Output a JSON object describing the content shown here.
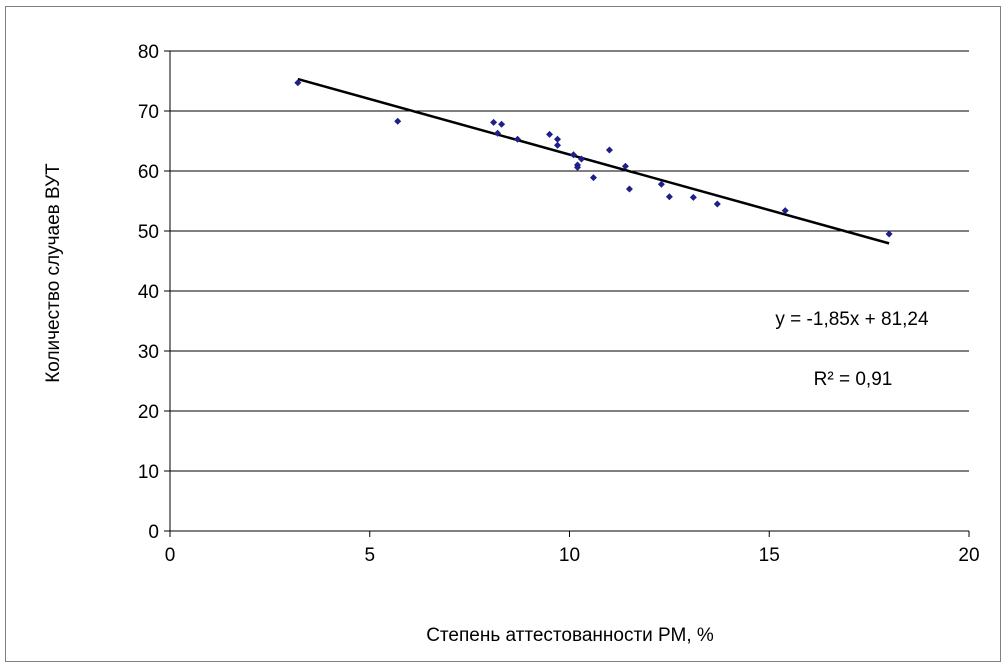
{
  "chart_data": {
    "type": "scatter",
    "title": "",
    "xlabel": "Степень аттестованности РМ, %",
    "ylabel": "Количество случаев  ВУТ",
    "xlim": [
      0,
      20
    ],
    "ylim": [
      0,
      80
    ],
    "xticks": [
      0,
      5,
      10,
      15,
      20
    ],
    "yticks": [
      0,
      10,
      20,
      30,
      40,
      50,
      60,
      70,
      80
    ],
    "grid": "horizontal",
    "point_color": "#1f1f8a",
    "line_color": "#000000",
    "points": [
      {
        "x": 3.2,
        "y": 74.7
      },
      {
        "x": 5.7,
        "y": 68.3
      },
      {
        "x": 8.1,
        "y": 68.1
      },
      {
        "x": 8.3,
        "y": 67.8
      },
      {
        "x": 8.2,
        "y": 66.3
      },
      {
        "x": 8.7,
        "y": 65.3
      },
      {
        "x": 9.5,
        "y": 66.1
      },
      {
        "x": 9.7,
        "y": 65.3
      },
      {
        "x": 9.7,
        "y": 64.3
      },
      {
        "x": 10.1,
        "y": 62.7
      },
      {
        "x": 10.3,
        "y": 62.0
      },
      {
        "x": 10.2,
        "y": 61.0
      },
      {
        "x": 10.2,
        "y": 60.6
      },
      {
        "x": 11.0,
        "y": 63.5
      },
      {
        "x": 11.4,
        "y": 60.8
      },
      {
        "x": 10.6,
        "y": 58.9
      },
      {
        "x": 11.5,
        "y": 57.0
      },
      {
        "x": 12.3,
        "y": 57.8
      },
      {
        "x": 12.5,
        "y": 55.7
      },
      {
        "x": 13.1,
        "y": 55.6
      },
      {
        "x": 13.7,
        "y": 54.5
      },
      {
        "x": 15.4,
        "y": 53.4
      },
      {
        "x": 18.0,
        "y": 49.5
      }
    ],
    "trendline": {
      "slope": -1.85,
      "intercept": 81.24,
      "x_range": [
        3.2,
        18.0
      ],
      "equation_label": "y = -1,85x + 81,24",
      "r2_label": "R² = 0,91"
    }
  }
}
